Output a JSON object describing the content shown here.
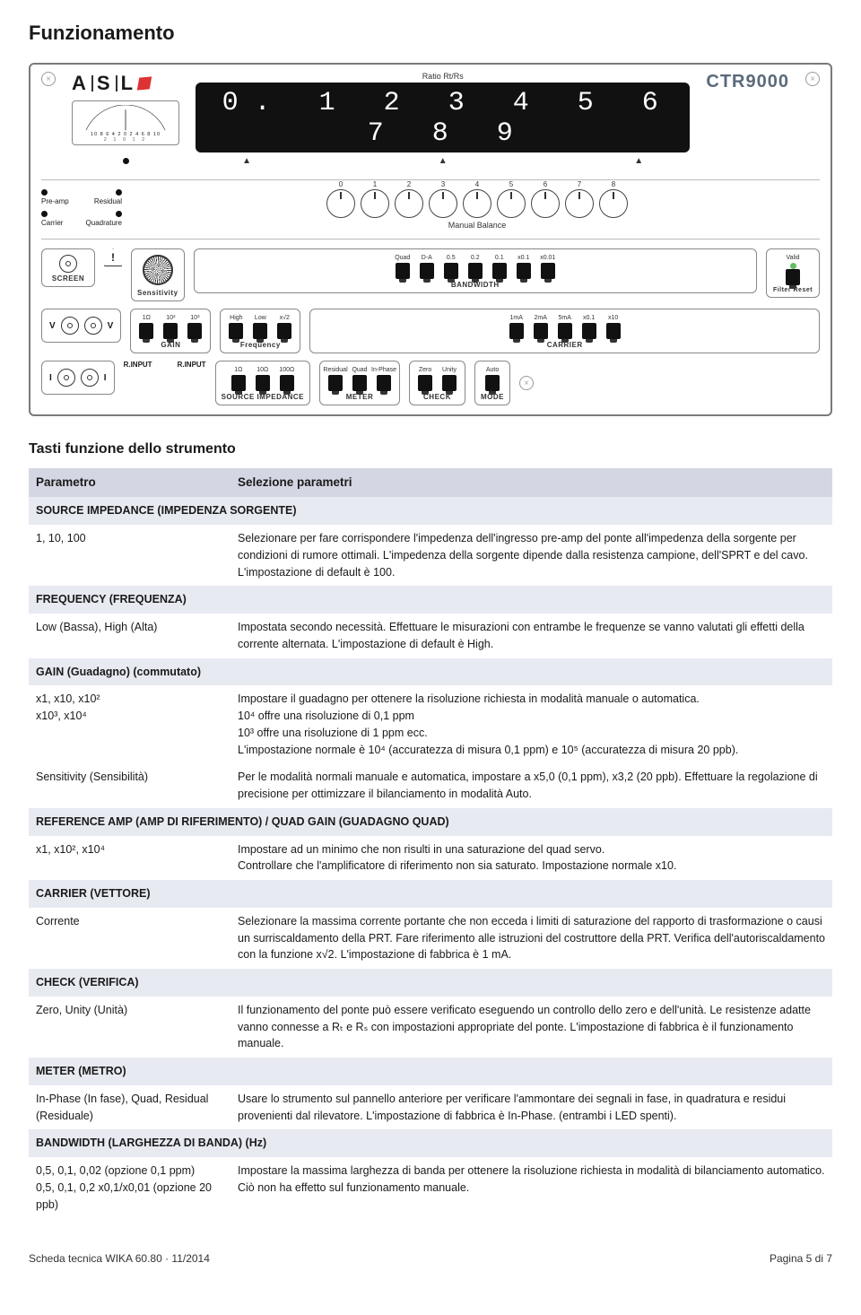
{
  "page": {
    "title": "Funzionamento",
    "subtitle": "Tasti funzione dello strumento",
    "footer_left": "Scheda tecnica WIKA 60.80 · 11/2014",
    "footer_right": "Pagina 5 di 7"
  },
  "panel": {
    "brand": "A | S | L",
    "model": "CTR9000",
    "ratio_label": "Ratio Rt/Rs",
    "digits": "0. 1 2 3 4 5 6 7 8 9",
    "meter_scale": "10  8  6  4  2  0  2  4  6  8  10",
    "meter_sub": "2     1     0     1     2",
    "bal_left_top": "Pre-amp",
    "bal_left_bot": "Carrier",
    "bal_right_top": "Residual",
    "bal_right_bot": "Quadrature",
    "manual_balance": "Manual Balance",
    "knob_labels": [
      "0",
      "1",
      "2",
      "3",
      "4",
      "5",
      "6",
      "7",
      "8"
    ],
    "screen": "SCREEN",
    "sensitivity": "Sensitivity",
    "bandwidth_labels": [
      "Quad",
      "D-A",
      "0.5",
      "0.2",
      "0.1",
      "x0.1",
      "x0.01"
    ],
    "bandwidth_title": "BANDWIDTH",
    "valid": "Valid",
    "filter_reset": "Filter Reset",
    "gain_labels": [
      "1Ω",
      "10²",
      "10³"
    ],
    "gain_title": "GAIN",
    "freq_labels": [
      "High",
      "Low",
      "x√2"
    ],
    "freq_title": "Frequency",
    "carrier_labels": [
      "1mA",
      "2mA",
      "5mA",
      "x0.1",
      "x10"
    ],
    "carrier_title": "CARRIER",
    "rinput": "R.INPUT",
    "v_label": "V",
    "i_label": "I",
    "src_labels": [
      "1Ω",
      "10Ω",
      "100Ω"
    ],
    "src_title": "SOURCE IMPEDANCE",
    "meter_labels": [
      "Residual",
      "Quad",
      "In-Phase"
    ],
    "meter_title": "METER",
    "check_labels": [
      "Zero",
      "Unity"
    ],
    "check_title": "CHECK",
    "mode_labels": [
      "Auto"
    ],
    "mode_title": "MODE"
  },
  "table": {
    "hdr_param": "Parametro",
    "hdr_sel": "Selezione parametri",
    "sections": [
      {
        "title": "SOURCE IMPEDANCE (IMPEDENZA SORGENTE)",
        "rows": [
          {
            "c1": "1, 10, 100",
            "c2": "Selezionare per fare corrispondere l'impedenza dell'ingresso pre-amp del ponte all'impedenza della sorgente per condizioni di rumore ottimali. L'impedenza della sorgente dipende dalla resistenza campione, dell'SPRT e del cavo. L'impostazione di default è 100."
          }
        ]
      },
      {
        "title": "FREQUENCY (FREQUENZA)",
        "rows": [
          {
            "c1": "Low (Bassa), High (Alta)",
            "c2": "Impostata secondo necessità. Effettuare le misurazioni con entrambe le frequenze se vanno valutati gli effetti della corrente alternata. L'impostazione di default è High."
          }
        ]
      },
      {
        "title": "GAIN (Guadagno) (commutato)",
        "rows": [
          {
            "c1": "x1, x10, x10²\nx10³, x10⁴",
            "c2": "Impostare il guadagno per ottenere la risoluzione richiesta in modalità manuale o automatica.\n10⁴ offre una risoluzione di 0,1 ppm\n10³ offre una risoluzione di 1 ppm ecc.\nL'impostazione normale è 10⁴ (accuratezza di misura 0,1 ppm) e 10⁵ (accuratezza di misura 20 ppb)."
          },
          {
            "c1": "Sensitivity (Sensibilità)",
            "c2": "Per le modalità normali manuale e automatica, impostare a x5,0 (0,1 ppm), x3,2 (20 ppb). Effettuare la regolazione di precisione per ottimizzare il bilanciamento in modalità Auto."
          }
        ]
      },
      {
        "title": "REFERENCE AMP (AMP DI RIFERIMENTO) / QUAD GAIN (GUADAGNO QUAD)",
        "rows": [
          {
            "c1": "x1, x10², x10⁴",
            "c2": "Impostare ad un minimo che non risulti in una saturazione del quad servo.\nControllare che l'amplificatore di riferimento non sia saturato. Impostazione normale x10."
          }
        ]
      },
      {
        "title": "CARRIER (VETTORE)",
        "rows": [
          {
            "c1": "Corrente",
            "c2": "Selezionare la massima corrente portante che non ecceda i limiti di saturazione del rapporto di trasformazione o causi un surriscaldamento della PRT. Fare riferimento alle istruzioni del costruttore della PRT. Verifica dell'autoriscaldamento con la funzione x√2. L'impostazione di fabbrica è 1 mA."
          }
        ]
      },
      {
        "title": "CHECK (VERIFICA)",
        "rows": [
          {
            "c1": "Zero, Unity (Unità)",
            "c2": "Il funzionamento del ponte può essere verificato eseguendo un controllo dello zero e dell'unità. Le resistenze adatte vanno connesse a Rₜ e Rₛ con impostazioni appropriate del ponte. L'impostazione di fabbrica è il funzionamento manuale."
          }
        ]
      },
      {
        "title": "METER (METRO)",
        "rows": [
          {
            "c1": "In-Phase (In fase), Quad, Residual (Residuale)",
            "c2": "Usare lo strumento sul pannello anteriore per verificare l'ammontare dei segnali in fase, in quadratura e residui provenienti dal rilevatore. L'impostazione di fabbrica è In-Phase. (entrambi i LED spenti)."
          }
        ]
      },
      {
        "title": "BANDWIDTH (LARGHEZZA DI BANDA) (Hz)",
        "rows": [
          {
            "c1": "0,5, 0,1, 0,02 (opzione 0,1 ppm)\n0,5, 0,1, 0,2 x0,1/x0,01 (opzione 20 ppb)",
            "c2": "Impostare la massima larghezza di banda per ottenere la risoluzione richiesta in modalità di bilanciamento automatico. Ciò non ha effetto sul funzionamento manuale."
          }
        ]
      }
    ]
  }
}
